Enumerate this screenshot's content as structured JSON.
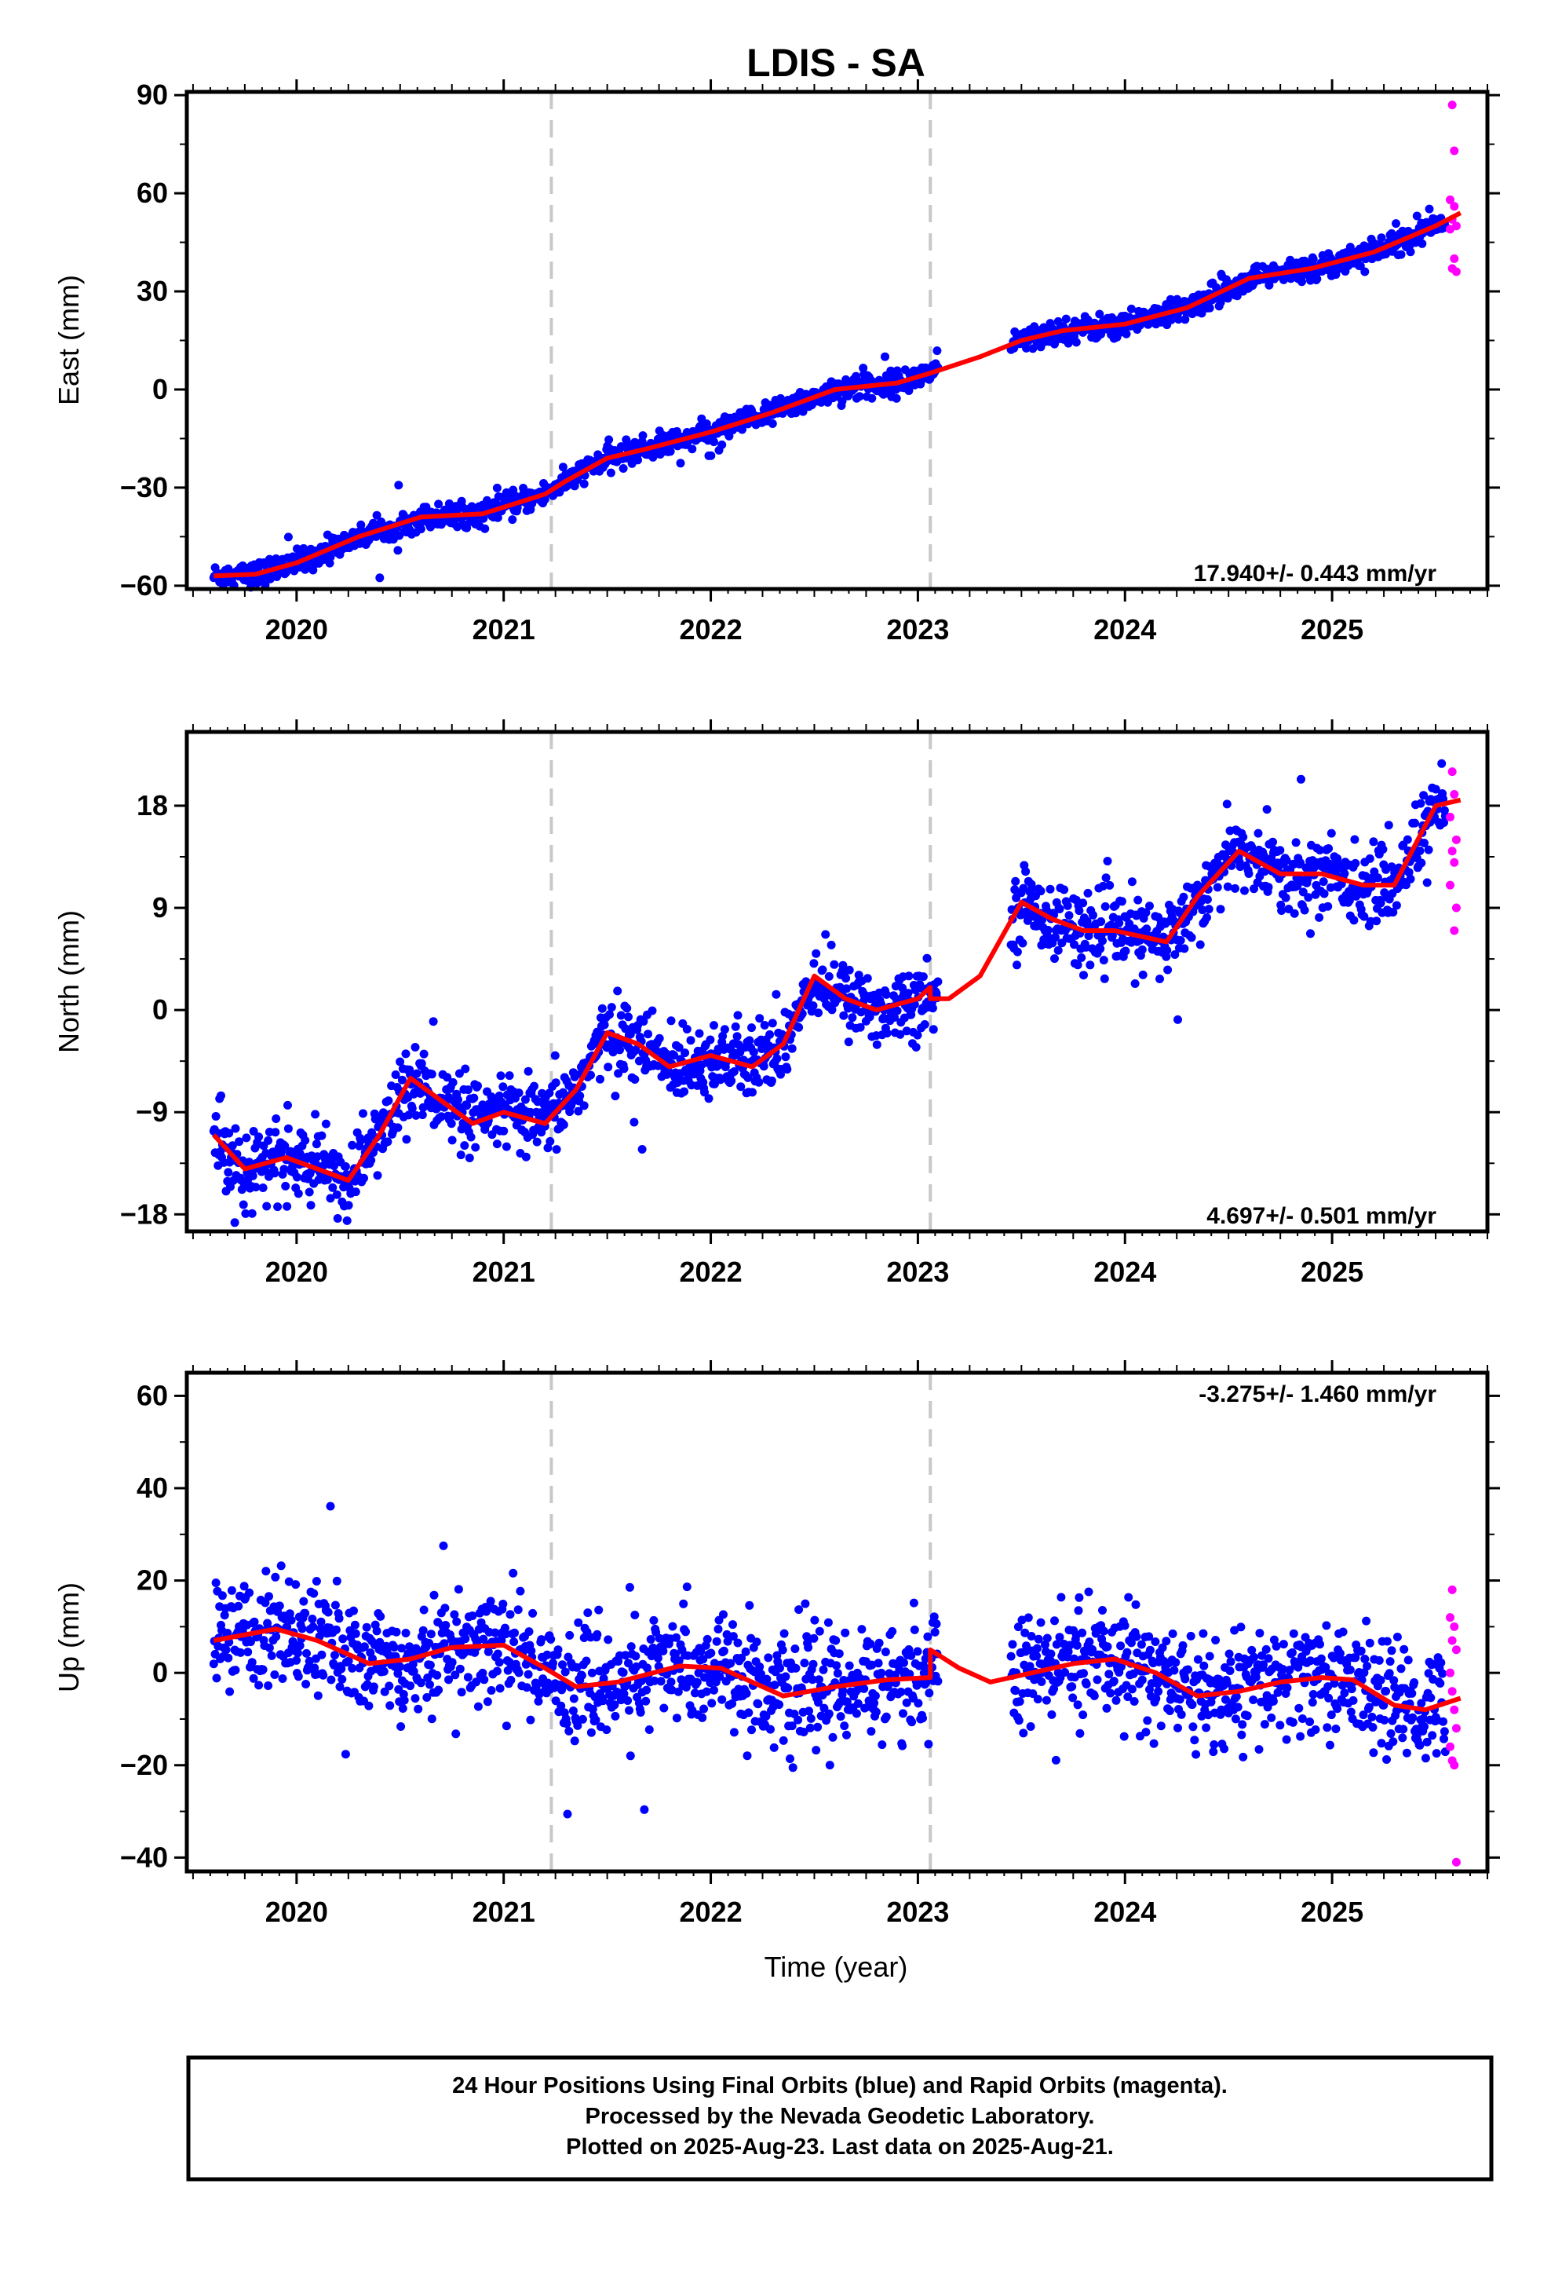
{
  "title": "LDIS - SA",
  "xlabel": "Time (year)",
  "footer": {
    "line1": "24 Hour Positions Using Final Orbits (blue) and Rapid Orbits (magenta).",
    "line2": "Processed by the Nevada Geodetic Laboratory.",
    "line3": "Plotted on 2025-Aug-23. Last data on 2025-Aug-21."
  },
  "colors": {
    "final": "#0000ff",
    "rapid": "#ff00ff",
    "model": "#ff0000",
    "equipment_change": "#c8c8c8"
  },
  "chart_data": [
    {
      "type": "scatter",
      "name": "east",
      "ylabel": "East (mm)",
      "rate_label": "17.940+/- 0.443 mm/yr",
      "xlim": [
        2019.47,
        2025.75
      ],
      "ylim": [
        -61,
        91
      ],
      "yticks": [
        "90",
        "60",
        "30",
        "0",
        "−30",
        "−60"
      ],
      "ytick_values": [
        90,
        60,
        30,
        0,
        -30,
        -60
      ],
      "xticks": [
        "2020",
        "2021",
        "2022",
        "2023",
        "2024",
        "2025"
      ],
      "xtick_values": [
        2020,
        2021,
        2022,
        2023,
        2024,
        2025
      ],
      "equipment_changes": [
        2021.23,
        2023.06
      ],
      "gaps": [
        [
          2023.1,
          2023.45
        ]
      ],
      "model": [
        [
          2019.6,
          -57
        ],
        [
          2019.8,
          -56.5
        ],
        [
          2020.0,
          -53
        ],
        [
          2020.3,
          -45
        ],
        [
          2020.6,
          -39
        ],
        [
          2020.9,
          -38
        ],
        [
          2021.2,
          -32
        ],
        [
          2021.3,
          -28
        ],
        [
          2021.5,
          -21
        ],
        [
          2021.7,
          -18
        ],
        [
          2022.0,
          -13
        ],
        [
          2022.3,
          -7
        ],
        [
          2022.6,
          0
        ],
        [
          2022.9,
          2
        ],
        [
          2023.06,
          5
        ],
        [
          2023.3,
          10
        ],
        [
          2023.5,
          15
        ],
        [
          2023.7,
          18
        ],
        [
          2024.0,
          20
        ],
        [
          2024.3,
          25
        ],
        [
          2024.6,
          34
        ],
        [
          2024.9,
          37
        ],
        [
          2025.2,
          42
        ],
        [
          2025.5,
          50
        ],
        [
          2025.62,
          54
        ]
      ],
      "rapid_points": [
        [
          2025.58,
          87
        ],
        [
          2025.59,
          73
        ],
        [
          2025.57,
          58
        ],
        [
          2025.59,
          56
        ],
        [
          2025.58,
          52
        ],
        [
          2025.6,
          50
        ],
        [
          2025.57,
          49
        ],
        [
          2025.59,
          40
        ],
        [
          2025.58,
          37
        ],
        [
          2025.6,
          36
        ]
      ],
      "scatter_sigma": 1.8
    },
    {
      "type": "scatter",
      "name": "north",
      "ylabel": "North (mm)",
      "rate_label": "4.697+/- 0.501 mm/yr",
      "xlim": [
        2019.47,
        2025.75
      ],
      "ylim": [
        -19.5,
        24.5
      ],
      "yticks": [
        "18",
        "9",
        "0",
        "−9",
        "−18"
      ],
      "ytick_values": [
        18,
        9,
        0,
        -9,
        -18
      ],
      "xticks": [
        "2020",
        "2021",
        "2022",
        "2023",
        "2024",
        "2025"
      ],
      "xtick_values": [
        2020,
        2021,
        2022,
        2023,
        2024,
        2025
      ],
      "equipment_changes": [
        2021.23,
        2023.06
      ],
      "gaps": [
        [
          2023.1,
          2023.45
        ]
      ],
      "model": [
        [
          2019.6,
          -11
        ],
        [
          2019.75,
          -14
        ],
        [
          2019.95,
          -13
        ],
        [
          2020.1,
          -14
        ],
        [
          2020.25,
          -15
        ],
        [
          2020.4,
          -11
        ],
        [
          2020.55,
          -6
        ],
        [
          2020.7,
          -8
        ],
        [
          2020.85,
          -10
        ],
        [
          2021.0,
          -9
        ],
        [
          2021.2,
          -10
        ],
        [
          2021.35,
          -7
        ],
        [
          2021.5,
          -2
        ],
        [
          2021.65,
          -3
        ],
        [
          2021.8,
          -5
        ],
        [
          2022.0,
          -4
        ],
        [
          2022.2,
          -5
        ],
        [
          2022.35,
          -3
        ],
        [
          2022.5,
          3
        ],
        [
          2022.65,
          1
        ],
        [
          2022.8,
          0
        ],
        [
          2023.0,
          1
        ],
        [
          2023.06,
          2
        ],
        [
          2023.06,
          1
        ],
        [
          2023.15,
          1
        ],
        [
          2023.3,
          3
        ],
        [
          2023.5,
          9.5
        ],
        [
          2023.65,
          8
        ],
        [
          2023.8,
          7
        ],
        [
          2023.95,
          7
        ],
        [
          2024.2,
          6
        ],
        [
          2024.35,
          10
        ],
        [
          2024.55,
          14
        ],
        [
          2024.75,
          12
        ],
        [
          2024.95,
          12
        ],
        [
          2025.15,
          11
        ],
        [
          2025.3,
          11
        ],
        [
          2025.5,
          18
        ],
        [
          2025.62,
          18.5
        ]
      ],
      "rapid_points": [
        [
          2025.58,
          21
        ],
        [
          2025.59,
          19
        ],
        [
          2025.57,
          17
        ],
        [
          2025.6,
          15
        ],
        [
          2025.58,
          14
        ],
        [
          2025.59,
          13
        ],
        [
          2025.57,
          11
        ],
        [
          2025.6,
          9
        ],
        [
          2025.59,
          7
        ]
      ],
      "scatter_sigma": 1.6
    },
    {
      "type": "scatter",
      "name": "up",
      "ylabel": "Up (mm)",
      "rate_label": "-3.275+/- 1.460 mm/yr",
      "xlim": [
        2019.47,
        2025.75
      ],
      "ylim": [
        -43,
        65
      ],
      "yticks": [
        "60",
        "40",
        "20",
        "0",
        "−20",
        "−40"
      ],
      "ytick_values": [
        60,
        40,
        20,
        0,
        -20,
        -40
      ],
      "xticks": [
        "2020",
        "2021",
        "2022",
        "2023",
        "2024",
        "2025"
      ],
      "xtick_values": [
        2020,
        2021,
        2022,
        2023,
        2024,
        2025
      ],
      "equipment_changes": [
        2021.23,
        2023.06
      ],
      "gaps": [
        [
          2023.1,
          2023.45
        ]
      ],
      "model": [
        [
          2019.6,
          7
        ],
        [
          2019.9,
          9.5
        ],
        [
          2020.1,
          7
        ],
        [
          2020.35,
          2
        ],
        [
          2020.55,
          3
        ],
        [
          2020.75,
          5.5
        ],
        [
          2021.0,
          6
        ],
        [
          2021.2,
          1
        ],
        [
          2021.35,
          -3
        ],
        [
          2021.55,
          -2
        ],
        [
          2021.85,
          1.5
        ],
        [
          2022.05,
          1
        ],
        [
          2022.35,
          -5
        ],
        [
          2022.6,
          -3
        ],
        [
          2022.85,
          -1.5
        ],
        [
          2023.06,
          -1
        ],
        [
          2023.06,
          5
        ],
        [
          2023.2,
          1
        ],
        [
          2023.35,
          -2
        ],
        [
          2023.55,
          0
        ],
        [
          2023.75,
          2
        ],
        [
          2023.95,
          3
        ],
        [
          2024.15,
          0
        ],
        [
          2024.35,
          -5
        ],
        [
          2024.55,
          -4
        ],
        [
          2024.75,
          -2
        ],
        [
          2024.95,
          -1
        ],
        [
          2025.1,
          -1.5
        ],
        [
          2025.3,
          -7
        ],
        [
          2025.45,
          -8
        ],
        [
          2025.62,
          -5.5
        ]
      ],
      "rapid_points": [
        [
          2025.58,
          18
        ],
        [
          2025.57,
          12
        ],
        [
          2025.59,
          10
        ],
        [
          2025.58,
          7
        ],
        [
          2025.6,
          5
        ],
        [
          2025.57,
          0
        ],
        [
          2025.58,
          -4
        ],
        [
          2025.59,
          -8
        ],
        [
          2025.6,
          -12
        ],
        [
          2025.57,
          -16
        ],
        [
          2025.58,
          -19
        ],
        [
          2025.59,
          -20
        ],
        [
          2025.6,
          -41
        ]
      ],
      "scatter_sigma": 6
    }
  ]
}
